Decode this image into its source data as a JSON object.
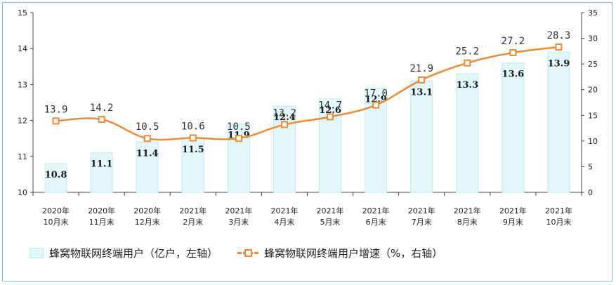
{
  "chart_data": {
    "type": "bar+line",
    "categories": [
      [
        "2020年",
        "10月末"
      ],
      [
        "2020年",
        "11月末"
      ],
      [
        "2020年",
        "12月末"
      ],
      [
        "2021年",
        "2月末"
      ],
      [
        "2021年",
        "3月末"
      ],
      [
        "2021年",
        "4月末"
      ],
      [
        "2021年",
        "5月末"
      ],
      [
        "2021年",
        "6月末"
      ],
      [
        "2021年",
        "7月末"
      ],
      [
        "2021年",
        "8月末"
      ],
      [
        "2021年",
        "9月末"
      ],
      [
        "2021年",
        "10月末"
      ]
    ],
    "series": [
      {
        "name": "蜂窝物联网终端用户（亿户，左轴）",
        "type": "bar",
        "axis": "left",
        "color": "#e3f7fb",
        "values": [
          10.8,
          11.1,
          11.4,
          11.5,
          11.9,
          12.4,
          12.6,
          12.9,
          13.1,
          13.3,
          13.6,
          13.9
        ],
        "labels": [
          "10.8",
          "11.1",
          "11.4",
          "11.5",
          "11.9",
          "12.4",
          "12.6",
          "12.9",
          "13.1",
          "13.3",
          "13.6",
          "13.9"
        ]
      },
      {
        "name": "蜂窝物联网终端用户增速（%，右轴）",
        "type": "line",
        "axis": "right",
        "color": "#ee8a35",
        "values": [
          13.9,
          14.2,
          10.5,
          10.6,
          10.5,
          13.2,
          14.7,
          17.0,
          21.9,
          25.2,
          27.2,
          28.3
        ],
        "labels": [
          "13.9",
          "14.2",
          "10.5",
          "10.6",
          "10.5",
          "13.2",
          "14.7",
          "17.0",
          "21.9",
          "25.2",
          "27.2",
          "28.3"
        ]
      }
    ],
    "left_axis": {
      "min": 10,
      "max": 15,
      "ticks": [
        10,
        11,
        12,
        13,
        14,
        15
      ]
    },
    "right_axis": {
      "min": 0,
      "max": 35,
      "ticks": [
        0,
        5,
        10,
        15,
        20,
        25,
        30,
        35
      ]
    },
    "grid": false,
    "legend": "bottom"
  },
  "legend": {
    "bar_label": "蜂窝物联网终端用户（亿户，左轴）",
    "line_label": "蜂窝物联网终端用户增速（%，右轴）"
  }
}
